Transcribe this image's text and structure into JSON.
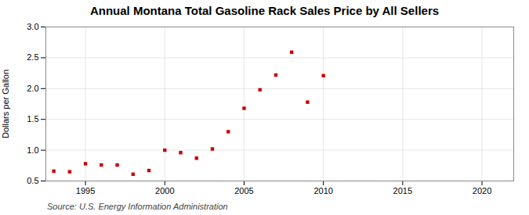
{
  "chart_data": {
    "type": "scatter",
    "title": "Annual Montana Total Gasoline Rack Sales Price by All Sellers",
    "ylabel": "Dollars per Gallon",
    "source": "Source: U.S. Energy Information Administration",
    "x": [
      1993,
      1994,
      1995,
      1996,
      1997,
      1998,
      1999,
      2000,
      2001,
      2002,
      2003,
      2004,
      2005,
      2006,
      2007,
      2008,
      2009,
      2010
    ],
    "values": [
      0.66,
      0.65,
      0.78,
      0.76,
      0.76,
      0.61,
      0.67,
      1.0,
      0.96,
      0.87,
      1.02,
      1.3,
      1.68,
      1.98,
      2.22,
      2.59,
      1.78,
      2.21
    ],
    "color": "#cc0000",
    "marker": "square",
    "xlim": [
      1992.5,
      2022
    ],
    "ylim": [
      0.5,
      3.0
    ],
    "xticks": [
      1995,
      2000,
      2005,
      2010,
      2015,
      2020
    ],
    "yticks": [
      0.5,
      {
        "value": 1.0,
        "label": "1.0"
      },
      1.5,
      {
        "value": 2.0,
        "label": "2.0"
      },
      2.5,
      {
        "value": 3.0,
        "label": "3.0"
      }
    ],
    "grid": true
  }
}
